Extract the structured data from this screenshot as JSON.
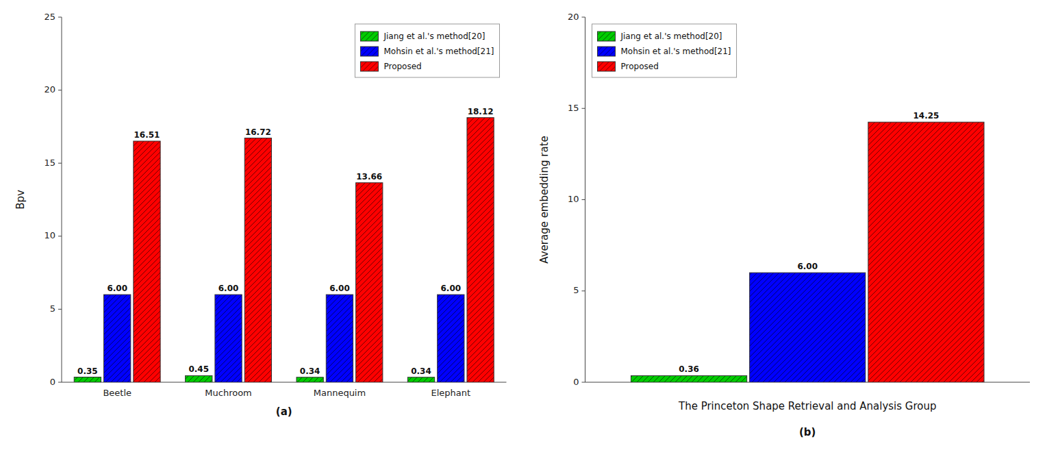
{
  "chart_data": [
    {
      "type": "bar",
      "subtitle": "(a)",
      "ylabel": "Bpv",
      "categories": [
        "Beetle",
        "Muchroom",
        "Mannequim",
        "Elephant"
      ],
      "series": [
        {
          "name": "Jiang et al.'s method[20]",
          "color": "#00cc00",
          "values": [
            0.35,
            0.45,
            0.34,
            0.34
          ]
        },
        {
          "name": "Mohsin et al.'s method[21]",
          "color": "#0000ff",
          "values": [
            6.0,
            6.0,
            6.0,
            6.0
          ],
          "value_labels": [
            "6.00",
            "6.00",
            "6.00",
            "6.00"
          ]
        },
        {
          "name": "Proposed",
          "color": "#ff0000",
          "values": [
            16.51,
            16.72,
            13.66,
            18.12
          ]
        }
      ],
      "ylim": [
        0,
        25
      ],
      "yticks": [
        0,
        5,
        10,
        15,
        20,
        25
      ],
      "data_labels": true,
      "legend": "upper right",
      "grid": false
    },
    {
      "type": "bar",
      "subtitle": "(b)",
      "xlabel": "The Princeton Shape Retrieval and Analysis Group",
      "ylabel": "Average embedding rate",
      "categories": [
        null
      ],
      "series": [
        {
          "name": "Jiang et al.'s method[20]",
          "color": "#00cc00",
          "values": [
            0.36
          ]
        },
        {
          "name": "Mohsin et al.'s method[21]",
          "color": "#0000ff",
          "values": [
            6.0
          ],
          "value_labels": [
            "6.00"
          ]
        },
        {
          "name": "Proposed",
          "color": "#ff0000",
          "values": [
            14.25
          ]
        }
      ],
      "ylim": [
        0,
        20
      ],
      "yticks": [
        0,
        5,
        10,
        15,
        20
      ],
      "data_labels": true,
      "legend": "upper left",
      "grid": false
    }
  ]
}
